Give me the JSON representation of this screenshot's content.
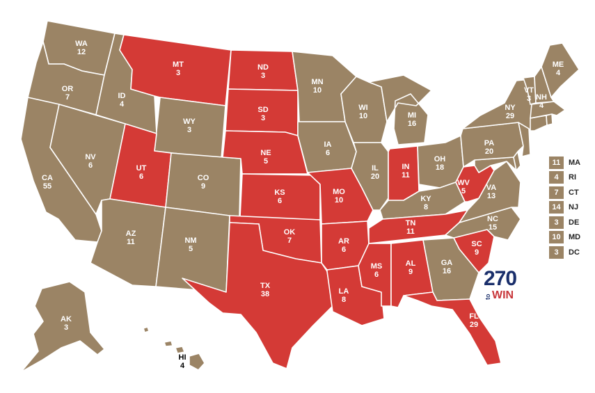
{
  "colors": {
    "rep": "#d43a36",
    "other": "#9b8465"
  },
  "states": [
    {
      "id": "WA",
      "ev": "12",
      "party": "other"
    },
    {
      "id": "OR",
      "ev": "7",
      "party": "other"
    },
    {
      "id": "CA",
      "ev": "55",
      "party": "other"
    },
    {
      "id": "ID",
      "ev": "4",
      "party": "other"
    },
    {
      "id": "NV",
      "ev": "6",
      "party": "other"
    },
    {
      "id": "MT",
      "ev": "3",
      "party": "rep"
    },
    {
      "id": "WY",
      "ev": "3",
      "party": "other"
    },
    {
      "id": "UT",
      "ev": "6",
      "party": "rep"
    },
    {
      "id": "AZ",
      "ev": "11",
      "party": "other"
    },
    {
      "id": "CO",
      "ev": "9",
      "party": "other"
    },
    {
      "id": "NM",
      "ev": "5",
      "party": "other"
    },
    {
      "id": "ND",
      "ev": "3",
      "party": "rep"
    },
    {
      "id": "SD",
      "ev": "3",
      "party": "rep"
    },
    {
      "id": "NE",
      "ev": "5",
      "party": "rep"
    },
    {
      "id": "KS",
      "ev": "6",
      "party": "rep"
    },
    {
      "id": "OK",
      "ev": "7",
      "party": "rep"
    },
    {
      "id": "TX",
      "ev": "38",
      "party": "rep"
    },
    {
      "id": "MN",
      "ev": "10",
      "party": "other"
    },
    {
      "id": "IA",
      "ev": "6",
      "party": "other"
    },
    {
      "id": "MO",
      "ev": "10",
      "party": "rep"
    },
    {
      "id": "AR",
      "ev": "6",
      "party": "rep"
    },
    {
      "id": "LA",
      "ev": "8",
      "party": "rep"
    },
    {
      "id": "WI",
      "ev": "10",
      "party": "other"
    },
    {
      "id": "IL",
      "ev": "20",
      "party": "other"
    },
    {
      "id": "MI",
      "ev": "16",
      "party": "other"
    },
    {
      "id": "IN",
      "ev": "11",
      "party": "rep"
    },
    {
      "id": "OH",
      "ev": "18",
      "party": "other"
    },
    {
      "id": "KY",
      "ev": "8",
      "party": "other"
    },
    {
      "id": "TN",
      "ev": "11",
      "party": "rep"
    },
    {
      "id": "MS",
      "ev": "6",
      "party": "rep"
    },
    {
      "id": "AL",
      "ev": "9",
      "party": "rep"
    },
    {
      "id": "GA",
      "ev": "16",
      "party": "other"
    },
    {
      "id": "FL",
      "ev": "29",
      "party": "rep"
    },
    {
      "id": "SC",
      "ev": "9",
      "party": "rep"
    },
    {
      "id": "NC",
      "ev": "15",
      "party": "other"
    },
    {
      "id": "VA",
      "ev": "13",
      "party": "other"
    },
    {
      "id": "WV",
      "ev": "5",
      "party": "rep"
    },
    {
      "id": "PA",
      "ev": "20",
      "party": "other"
    },
    {
      "id": "NY",
      "ev": "29",
      "party": "other"
    },
    {
      "id": "VT",
      "ev": "3",
      "party": "other"
    },
    {
      "id": "NH",
      "ev": "4",
      "party": "other"
    },
    {
      "id": "ME",
      "ev": "4",
      "party": "other"
    },
    {
      "id": "AK",
      "ev": "3",
      "party": "other"
    },
    {
      "id": "HI",
      "ev": "4",
      "party": "other"
    }
  ],
  "legend": [
    {
      "id": "MA",
      "ev": "11",
      "party": "other"
    },
    {
      "id": "RI",
      "ev": "4",
      "party": "other"
    },
    {
      "id": "CT",
      "ev": "7",
      "party": "other"
    },
    {
      "id": "NJ",
      "ev": "14",
      "party": "other"
    },
    {
      "id": "DE",
      "ev": "3",
      "party": "other"
    },
    {
      "id": "MD",
      "ev": "10",
      "party": "other"
    },
    {
      "id": "DC",
      "ev": "3",
      "party": "other"
    }
  ],
  "logo": {
    "number": "270",
    "to": "to",
    "win": "WIN"
  }
}
